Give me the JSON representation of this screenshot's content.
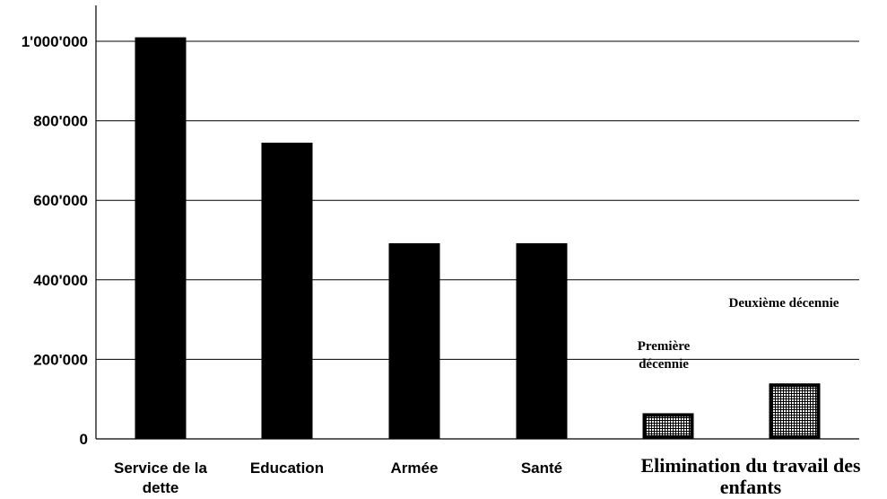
{
  "chart_data": {
    "type": "bar",
    "y_ticks": [
      {
        "value": 0,
        "label": "0"
      },
      {
        "value": 200000,
        "label": "200'000"
      },
      {
        "value": 400000,
        "label": "400'000"
      },
      {
        "value": 600000,
        "label": "600'000"
      },
      {
        "value": 800000,
        "label": "800'000"
      },
      {
        "value": 1000000,
        "label": "1'000'000"
      }
    ],
    "ylim": [
      0,
      1100000
    ],
    "grid": true,
    "legend": "none",
    "categories": [
      {
        "lines": [
          "Service de la",
          "dette"
        ],
        "value": 1010000
      },
      {
        "lines": [
          "Education"
        ],
        "value": 745000
      },
      {
        "lines": [
          "Armée"
        ],
        "value": 492000
      },
      {
        "lines": [
          "Santé"
        ],
        "value": 492000
      }
    ],
    "group": {
      "lines": [
        "Elimination du travail des",
        "enfants"
      ],
      "bars": [
        {
          "lines": [
            "Première",
            "décennie"
          ],
          "value": 60000
        },
        {
          "lines": [
            "Deuxième décennie"
          ],
          "value": 135000
        }
      ]
    },
    "colors": {
      "bar": "#000000",
      "hatch_bg": "#ffffff",
      "grid": "#000000"
    }
  }
}
